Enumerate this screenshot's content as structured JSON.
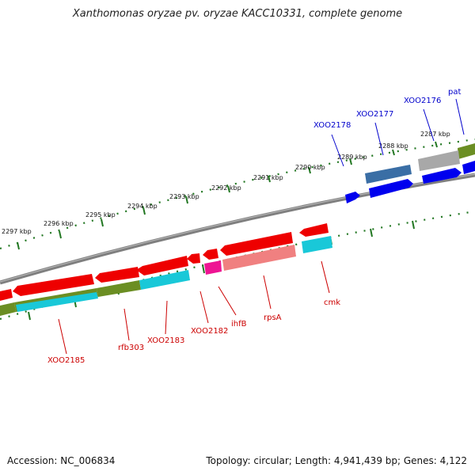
{
  "title": "Xanthomonas oryzae pv. oryzae KACC10331, complete genome",
  "footer": {
    "accession": "Accession: NC_006834",
    "topology": "Topology: circular; Length: 4,941,439 bp; Genes: 4,122"
  },
  "ticks": [
    "2287 kbp",
    "2288 kbp",
    "2289 kbp",
    "2290 kbp",
    "2291 kbp",
    "2292 kbp",
    "2293 kbp",
    "2294 kbp",
    "2295 kbp",
    "2296 kbp",
    "2297 kbp"
  ],
  "labels_forward": [
    "pat",
    "XOO2176",
    "XOO2177",
    "XOO2178"
  ],
  "labels_reverse": [
    "cmk",
    "rpsA",
    "ihfB",
    "XOO2182",
    "XOO2183",
    "rfb303",
    "XOO2185"
  ],
  "colors": {
    "forward_label": "#0000cc",
    "reverse_label": "#cc0000",
    "backbone": "#7f7f7f",
    "tick_marks": "#227722"
  }
}
